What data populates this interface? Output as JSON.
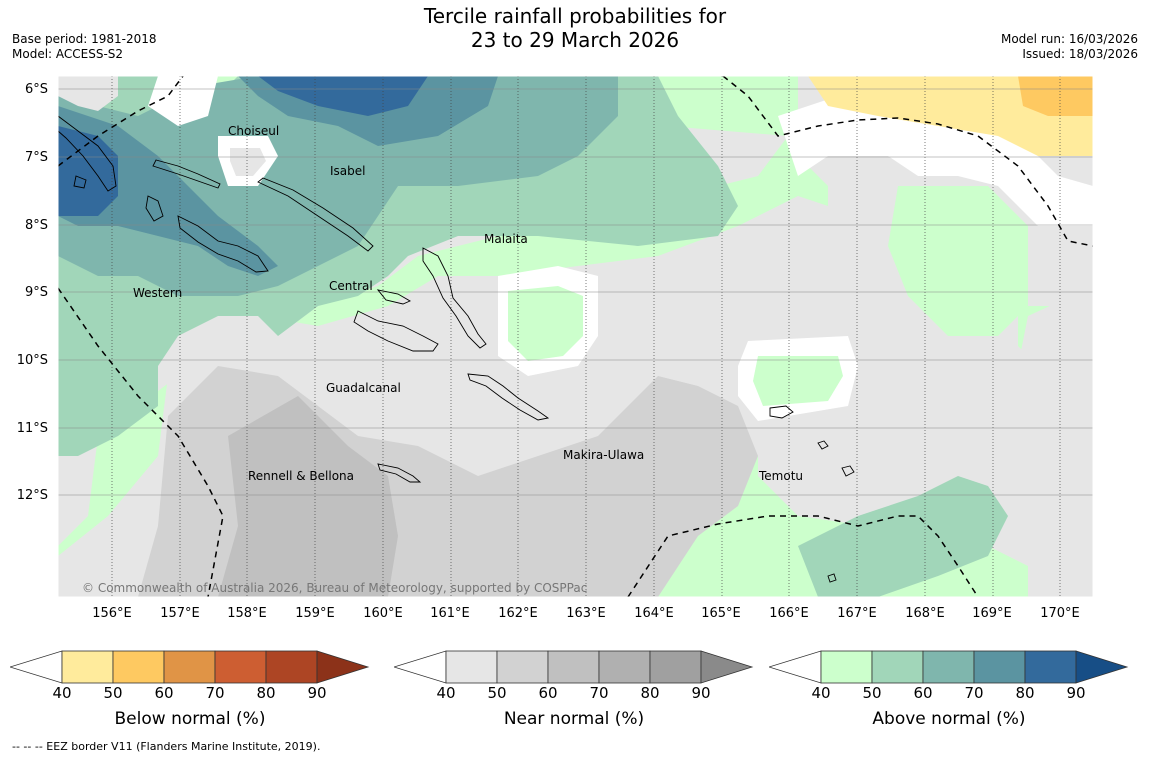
{
  "title_line1": "Tercile rainfall probabilities for",
  "title_line2": "23 to 29 March 2026",
  "base_period": "Base period: 1981-2018",
  "model": "Model: ACCESS-S2",
  "model_run": "Model run: 16/03/2026",
  "issued": "Issued: 18/03/2026",
  "copyright": "© Commonwealth of Australia 2026, Bureau of Meteorology, supported by COSPPac",
  "eez_note": "--  --  -- EEZ border V11 (Flanders Marine Institute, 2019).",
  "lat_labels": [
    "6°S",
    "7°S",
    "8°S",
    "9°S",
    "10°S",
    "11°S",
    "12°S"
  ],
  "lon_labels": [
    "156°E",
    "157°E",
    "158°E",
    "159°E",
    "160°E",
    "161°E",
    "162°E",
    "163°E",
    "164°E",
    "165°E",
    "166°E",
    "167°E",
    "168°E",
    "169°E",
    "170°E"
  ],
  "places": {
    "choiseul": "Choiseul",
    "isabel": "Isabel",
    "malaita": "Malaita",
    "central": "Central",
    "western": "Western",
    "guadalcanal": "Guadalcanal",
    "rennell": "Rennell & Bellona",
    "makira": "Makira-Ulawa",
    "temotu": "Temotu"
  },
  "colorbars": {
    "below": {
      "title": "Below normal (%)",
      "ticks": [
        "40",
        "50",
        "60",
        "70",
        "80",
        "90"
      ],
      "colors": [
        "#ffeb9c",
        "#fec961",
        "#e09446",
        "#cd5e32",
        "#ad4524",
        "#8c3219"
      ]
    },
    "near": {
      "title": "Near normal (%)",
      "ticks": [
        "40",
        "50",
        "60",
        "70",
        "80",
        "90"
      ],
      "colors": [
        "#e6e6e6",
        "#d2d2d2",
        "#c0c0c0",
        "#b0b0b0",
        "#a0a0a0",
        "#8a8a8a"
      ]
    },
    "above": {
      "title": "Above normal (%)",
      "ticks": [
        "40",
        "50",
        "60",
        "70",
        "80",
        "90"
      ],
      "colors": [
        "#ccffcc",
        "#a1d6b9",
        "#7fb6ad",
        "#5b94a1",
        "#336a9c",
        "#174e86"
      ]
    }
  }
}
